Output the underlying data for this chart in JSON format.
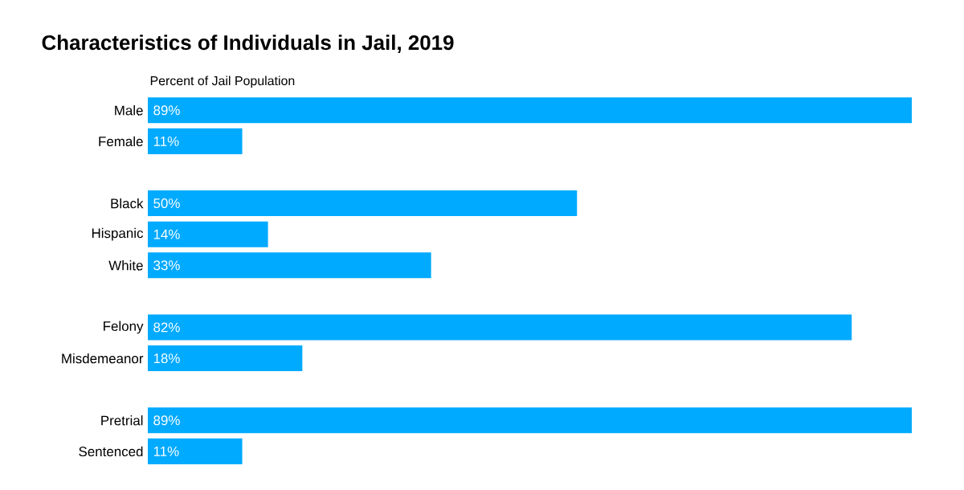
{
  "chart_data": {
    "type": "bar",
    "orientation": "horizontal",
    "title": "Characteristics of Individuals in Jail, 2019",
    "subtitle": "Percent of Jail Population",
    "categories": [
      "Male",
      "Female",
      null,
      "Black",
      "Hispanic",
      "White",
      null,
      "Felony",
      "Misdemeanor",
      null,
      "Pretrial",
      "Sentenced"
    ],
    "values": [
      89,
      11,
      null,
      50,
      14,
      33,
      null,
      82,
      18,
      null,
      89,
      11
    ],
    "value_labels": [
      "89%",
      "11%",
      null,
      "50%",
      "14%",
      "33%",
      null,
      "82%",
      "18%",
      null,
      "89%",
      "11%"
    ],
    "color": "#00aaff",
    "xlim": [
      0,
      89
    ],
    "tick_labels": "y"
  }
}
